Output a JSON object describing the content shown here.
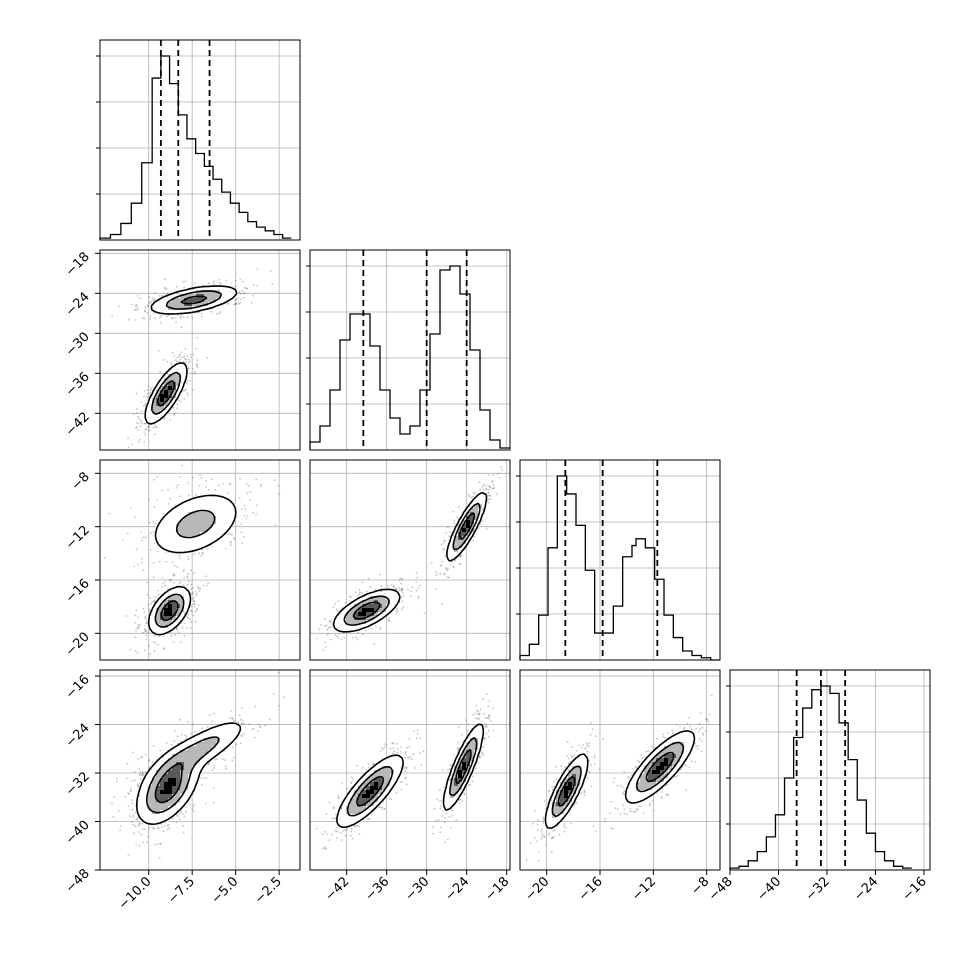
{
  "chart_data": {
    "type": "corner",
    "grid": true,
    "params": [
      {
        "range": [
          -12.8,
          -1.3
        ],
        "ticks": [
          "-10.0",
          "-7.5",
          "-5.0",
          "-2.5"
        ],
        "tick_values": [
          -10.0,
          -7.5,
          -5.0,
          -2.5
        ],
        "quantiles": [
          -9.3,
          -8.3,
          -6.5
        ]
      },
      {
        "range": [
          -47.5,
          -17.5
        ],
        "ticks": [
          "-42",
          "-36",
          "-30",
          "-24",
          "-18"
        ],
        "tick_values": [
          -42,
          -36,
          -30,
          -24,
          -18
        ],
        "quantiles": [
          -39.5,
          -30.0,
          -24.0
        ]
      },
      {
        "range": [
          -22.0,
          -7.0
        ],
        "ticks": [
          "-20",
          "-16",
          "-12",
          "-8"
        ],
        "tick_values": [
          -20,
          -16,
          -12,
          -8
        ],
        "quantiles": [
          -18.6,
          -15.8,
          -11.7
        ]
      },
      {
        "range": [
          -48.0,
          -15.0
        ],
        "ticks": [
          "-48",
          "-40",
          "-32",
          "-24",
          "-16"
        ],
        "tick_values": [
          -48,
          -40,
          -32,
          -24,
          -16
        ],
        "quantiles": [
          -37.0,
          -33.0,
          -29.0
        ]
      }
    ],
    "histograms": [
      {
        "param": 0,
        "bins": [
          -12.8,
          -12.2,
          -11.6,
          -11.0,
          -10.4,
          -9.8,
          -9.3,
          -8.8,
          -8.3,
          -7.8,
          -7.3,
          -6.8,
          -6.3,
          -5.8,
          -5.3,
          -4.8,
          -4.3,
          -3.8,
          -3.3,
          -2.8,
          -2.3,
          -1.8
        ],
        "counts": [
          0.01,
          0.03,
          0.09,
          0.2,
          0.42,
          0.88,
          1.0,
          0.85,
          0.68,
          0.55,
          0.47,
          0.4,
          0.33,
          0.26,
          0.2,
          0.15,
          0.1,
          0.07,
          0.05,
          0.03,
          0.01
        ]
      },
      {
        "param": 1,
        "bins": [
          -47.5,
          -46.0,
          -44.5,
          -43.0,
          -41.5,
          -40.0,
          -38.5,
          -37.0,
          -35.5,
          -34.0,
          -32.5,
          -31.0,
          -29.5,
          -28.0,
          -26.5,
          -25.0,
          -23.5,
          -22.0,
          -20.5,
          -19.0,
          -17.5
        ],
        "counts": [
          0.04,
          0.12,
          0.3,
          0.55,
          0.68,
          0.68,
          0.52,
          0.3,
          0.16,
          0.08,
          0.12,
          0.3,
          0.58,
          0.9,
          0.92,
          0.78,
          0.5,
          0.2,
          0.05,
          0.01
        ]
      },
      {
        "param": 2,
        "bins": [
          -22.0,
          -21.3,
          -20.6,
          -19.9,
          -19.2,
          -18.5,
          -17.8,
          -17.1,
          -16.4,
          -15.7,
          -15.0,
          -14.3,
          -13.6,
          -13.3,
          -12.6,
          -11.9,
          -11.2,
          -10.5,
          -9.8,
          -9.1,
          -8.4,
          -7.7,
          -7.0
        ],
        "counts": [
          0.02,
          0.07,
          0.2,
          0.5,
          0.82,
          0.74,
          0.6,
          0.4,
          0.12,
          0.12,
          0.24,
          0.46,
          0.51,
          0.54,
          0.5,
          0.36,
          0.2,
          0.1,
          0.04,
          0.02,
          0.01,
          0.0
        ]
      },
      {
        "param": 3,
        "bins": [
          -48.0,
          -46.5,
          -45.0,
          -43.5,
          -42.0,
          -40.5,
          -39.0,
          -37.5,
          -36.0,
          -34.5,
          -33.0,
          -31.5,
          -30.0,
          -28.5,
          -27.0,
          -25.5,
          -24.0,
          -22.5,
          -21.0,
          -19.5,
          -18.0
        ],
        "counts": [
          0.01,
          0.02,
          0.05,
          0.1,
          0.18,
          0.3,
          0.5,
          0.72,
          0.88,
          0.98,
          1.0,
          0.96,
          0.8,
          0.6,
          0.38,
          0.2,
          0.1,
          0.05,
          0.02,
          0.01
        ]
      }
    ],
    "joint_panels": [
      {
        "x": 0,
        "y": 1,
        "clusters": [
          {
            "mx": -7.4,
            "my": -25.0,
            "sx": 1.3,
            "sy": 1.1,
            "rho": 0.55,
            "w": 1.0
          },
          {
            "mx": -9.0,
            "my": -39.0,
            "sx": 0.6,
            "sy": 2.3,
            "rho": 0.75,
            "w": 1.2
          }
        ]
      },
      {
        "x": 0,
        "y": 2,
        "clusters": [
          {
            "mx": -7.3,
            "my": -11.8,
            "sx": 1.4,
            "sy": 1.3,
            "rho": 0.4,
            "w": 0.7
          },
          {
            "mx": -8.8,
            "my": -18.3,
            "sx": 0.6,
            "sy": 0.9,
            "rho": 0.5,
            "w": 1.3
          }
        ]
      },
      {
        "x": 1,
        "y": 2,
        "clusters": [
          {
            "mx": -24.0,
            "my": -12.0,
            "sx": 1.5,
            "sy": 1.3,
            "rho": 0.85,
            "w": 1.0
          },
          {
            "mx": -39.0,
            "my": -18.3,
            "sx": 2.5,
            "sy": 0.8,
            "rho": 0.65,
            "w": 1.0
          }
        ]
      },
      {
        "x": 0,
        "y": 3,
        "clusters": [
          {
            "mx": -8.9,
            "my": -34.5,
            "sx": 0.9,
            "sy": 3.0,
            "rho": 0.5,
            "w": 1.3
          },
          {
            "mx": -7.0,
            "my": -28.0,
            "sx": 1.4,
            "sy": 2.6,
            "rho": 0.8,
            "w": 0.7
          }
        ]
      },
      {
        "x": 1,
        "y": 3,
        "clusters": [
          {
            "mx": -38.5,
            "my": -35.0,
            "sx": 2.5,
            "sy": 3.0,
            "rho": 0.8,
            "w": 1.0
          },
          {
            "mx": -24.5,
            "my": -31.0,
            "sx": 1.5,
            "sy": 3.6,
            "rho": 0.85,
            "w": 1.0
          }
        ]
      },
      {
        "x": 2,
        "y": 3,
        "clusters": [
          {
            "mx": -18.5,
            "my": -35.0,
            "sx": 0.8,
            "sy": 3.1,
            "rho": 0.8,
            "w": 1.0
          },
          {
            "mx": -11.5,
            "my": -31.0,
            "sx": 1.3,
            "sy": 3.0,
            "rho": 0.8,
            "w": 1.0
          }
        ]
      }
    ]
  }
}
